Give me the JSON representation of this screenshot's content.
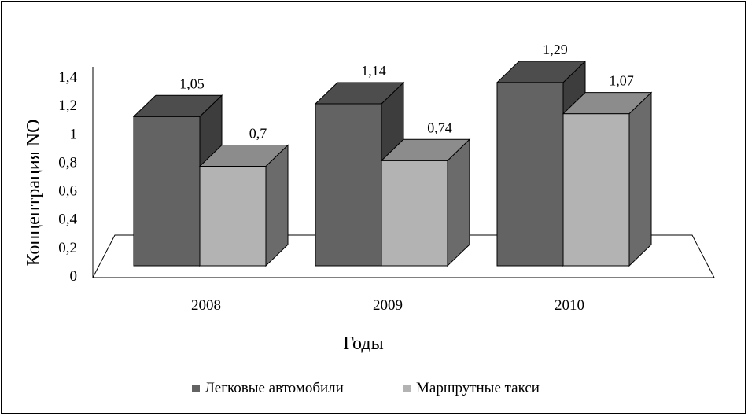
{
  "chart_data": {
    "type": "bar",
    "title": "",
    "xlabel": "Годы",
    "ylabel": "Концентрация NO",
    "categories": [
      "2008",
      "2009",
      "2010"
    ],
    "series": [
      {
        "name": "Легковые автомобили",
        "values": [
          1.05,
          1.14,
          1.29
        ],
        "labels": [
          "1,05",
          "1,14",
          "1,29"
        ],
        "color": "#636363"
      },
      {
        "name": "Маршрутные такси",
        "values": [
          0.7,
          0.74,
          1.07
        ],
        "labels": [
          "0,7",
          "0,74",
          "1,07"
        ],
        "color": "#b3b3b3"
      }
    ],
    "ylim": [
      0,
      1.4
    ],
    "yticks": [
      0,
      0.2,
      0.4,
      0.6,
      0.8,
      1,
      1.2,
      1.4
    ],
    "ytick_labels": [
      "0",
      "0,2",
      "0,4",
      "0,6",
      "0,8",
      "1",
      "1,2",
      "1,4"
    ],
    "grid": false,
    "legend_position": "bottom",
    "style": "3d-column"
  }
}
